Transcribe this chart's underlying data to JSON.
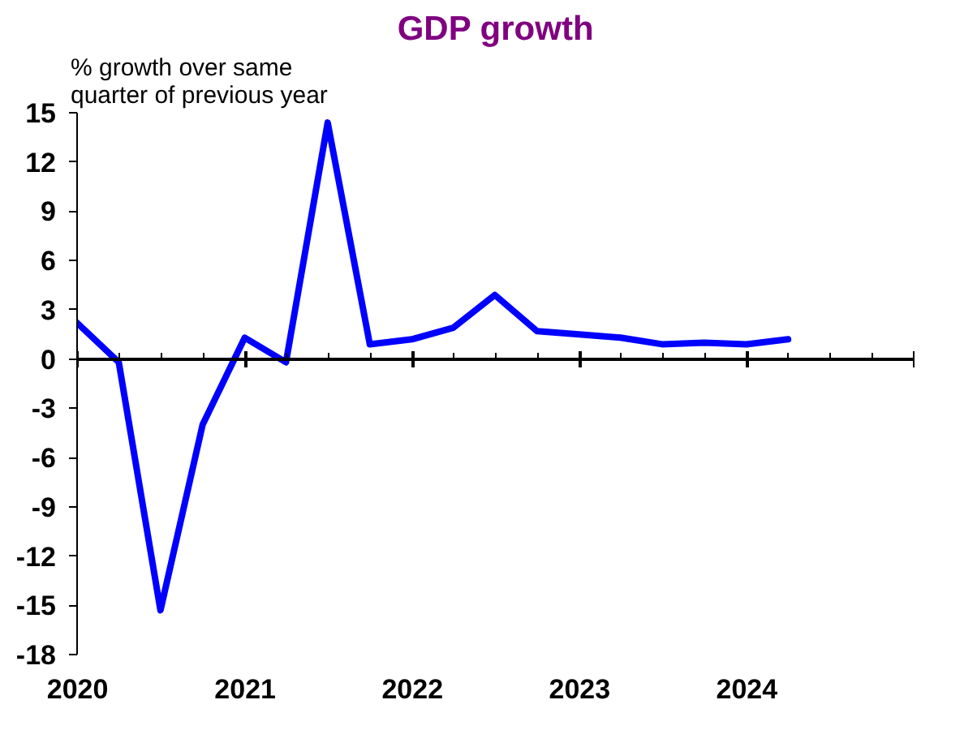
{
  "chart_data": {
    "type": "line",
    "title": "GDP growth",
    "ylabel": "% growth over same\nquarter of previous year",
    "x": [
      "2019-12-31",
      "2020-03-31",
      "2020-06-30",
      "2020-09-30",
      "2020-12-31",
      "2021-03-31",
      "2021-06-30",
      "2021-09-30",
      "2021-12-31",
      "2022-03-31",
      "2022-06-30",
      "2022-09-30",
      "2022-12-31",
      "2023-03-31",
      "2023-06-30",
      "2023-09-30",
      "2023-12-31",
      "2024-03-31"
    ],
    "series": [
      {
        "color": "#0000ff",
        "values": [
          2.2,
          -0.2,
          -15.3,
          -4.0,
          1.3,
          -0.2,
          14.4,
          0.9,
          1.2,
          1.9,
          3.9,
          1.7,
          1.5,
          1.3,
          0.9,
          1.0,
          0.9,
          1.2
        ]
      }
    ],
    "xlim": [
      "2019-12-31",
      "2025-01-01"
    ],
    "xticks": [
      {
        "value": "2020-01-01",
        "label": "2020"
      },
      {
        "value": "2020-04-01",
        "label": null
      },
      {
        "value": "2020-07-01",
        "label": null
      },
      {
        "value": "2020-10-01",
        "label": null
      },
      {
        "value": "2021-01-01",
        "label": "2021"
      },
      {
        "value": "2021-04-01",
        "label": null
      },
      {
        "value": "2021-07-01",
        "label": null
      },
      {
        "value": "2021-10-01",
        "label": null
      },
      {
        "value": "2022-01-01",
        "label": "2022"
      },
      {
        "value": "2022-04-01",
        "label": null
      },
      {
        "value": "2022-07-01",
        "label": null
      },
      {
        "value": "2022-10-01",
        "label": null
      },
      {
        "value": "2023-01-01",
        "label": "2023"
      },
      {
        "value": "2023-04-01",
        "label": null
      },
      {
        "value": "2023-07-01",
        "label": null
      },
      {
        "value": "2023-10-01",
        "label": null
      },
      {
        "value": "2024-01-01",
        "label": "2024"
      },
      {
        "value": "2024-04-01",
        "label": null
      },
      {
        "value": "2024-07-01",
        "label": null
      },
      {
        "value": "2024-10-01",
        "label": null
      },
      {
        "value": "2025-01-01",
        "label": null
      }
    ],
    "ylim": [
      -18,
      15
    ],
    "yticks": [
      -18,
      -15,
      -12,
      -9,
      -6,
      -3,
      0,
      3,
      6,
      9,
      12,
      15
    ],
    "line_style": "solid"
  }
}
